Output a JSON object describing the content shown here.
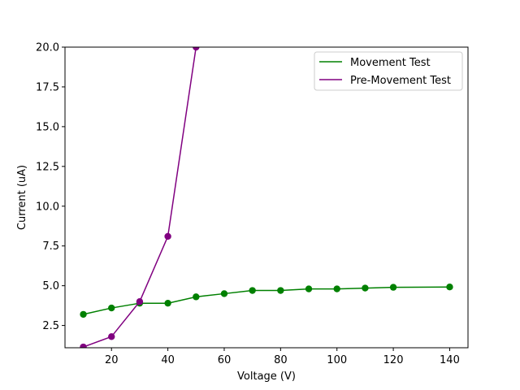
{
  "chart_data": {
    "type": "line",
    "title": "",
    "xlabel": "Voltage (V)",
    "ylabel": "Current (uA)",
    "xlim": [
      3.5,
      146.5
    ],
    "ylim": [
      1.1,
      20.0
    ],
    "xticks": [
      20,
      40,
      60,
      80,
      100,
      120,
      140
    ],
    "xtick_labels": [
      "20",
      "40",
      "60",
      "80",
      "100",
      "120",
      "140"
    ],
    "yticks": [
      2.5,
      5.0,
      7.5,
      10.0,
      12.5,
      15.0,
      17.5,
      20.0
    ],
    "ytick_labels": [
      "2.5",
      "5.0",
      "7.5",
      "10.0",
      "12.5",
      "15.0",
      "17.5",
      "20.0"
    ],
    "grid": false,
    "legend_position": "top-right",
    "series": [
      {
        "name": "Movement Test",
        "color": "#008000",
        "marker": "circle",
        "x": [
          10,
          20,
          30,
          40,
          50,
          60,
          70,
          80,
          90,
          100,
          110,
          120,
          140
        ],
        "y": [
          3.2,
          3.6,
          3.9,
          3.9,
          4.3,
          4.5,
          4.7,
          4.7,
          4.8,
          4.8,
          4.85,
          4.9,
          4.92
        ]
      },
      {
        "name": "Pre-Movement Test",
        "color": "#800080",
        "marker": "circle",
        "x": [
          10,
          20,
          30,
          40,
          50
        ],
        "y": [
          1.15,
          1.8,
          4.0,
          8.1,
          20.0
        ]
      }
    ]
  }
}
